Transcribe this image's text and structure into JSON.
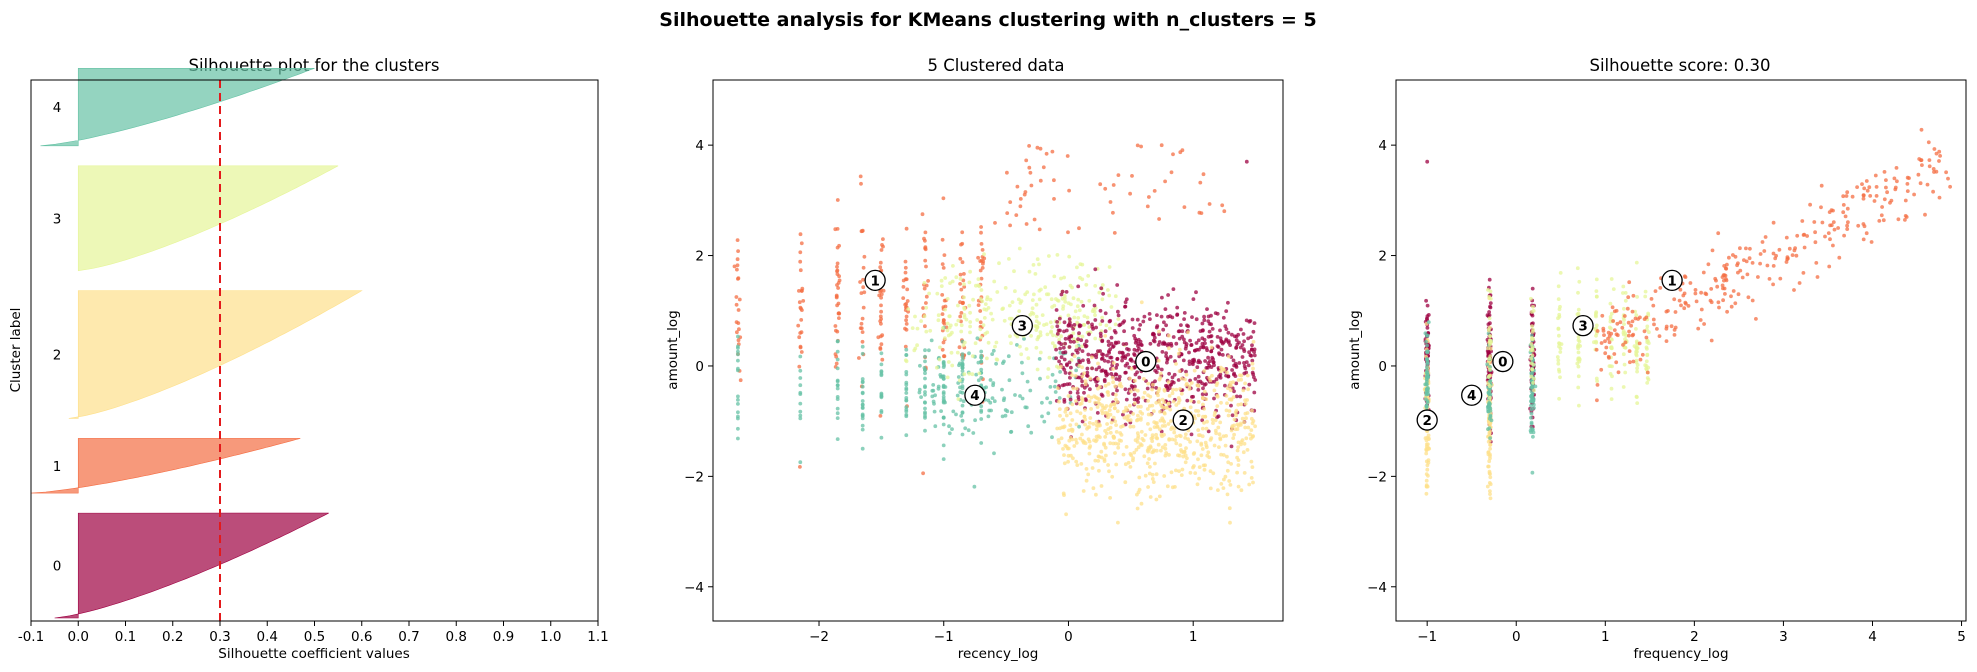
{
  "figure": {
    "suptitle": "Silhouette analysis for KMeans clustering with n_clusters = 5",
    "palette": [
      "#9e0142",
      "#f46d43",
      "#fee08b",
      "#e6f598",
      "#66c2a5"
    ]
  },
  "chart_data": [
    {
      "type": "area",
      "title": "Silhouette plot for the clusters",
      "xlabel": "Silhouette coefficient values",
      "ylabel": "Cluster label",
      "xlim": [
        -0.1,
        1.1
      ],
      "xticks": [
        "-0.1",
        "0.0",
        "0.1",
        "0.2",
        "0.3",
        "0.4",
        "0.5",
        "0.6",
        "0.7",
        "0.8",
        "0.9",
        "1.0",
        "1.1"
      ],
      "yticks": "none",
      "average_silhouette_line": 0.3,
      "clusters": [
        {
          "label": "0",
          "color": "#9e0142",
          "max": 0.53,
          "min": -0.05,
          "share": 0.23
        },
        {
          "label": "1",
          "color": "#f46d43",
          "max": 0.47,
          "min": -0.1,
          "share": 0.12
        },
        {
          "label": "2",
          "color": "#fee08b",
          "max": 0.6,
          "min": -0.02,
          "share": 0.28
        },
        {
          "label": "3",
          "color": "#e6f598",
          "max": 0.55,
          "min": 0.0,
          "share": 0.23
        },
        {
          "label": "4",
          "color": "#66c2a5",
          "max": 0.5,
          "min": -0.08,
          "share": 0.17
        }
      ]
    },
    {
      "type": "scatter",
      "title": "5 Clustered data",
      "xlabel": "recency_log",
      "ylabel": "amount_log",
      "xlim": [
        -2.85,
        1.72
      ],
      "ylim": [
        -4.62,
        5.18
      ],
      "xticks": [
        "−2",
        "−1",
        "0",
        "1"
      ],
      "yticks": [
        "−4",
        "−2",
        "0",
        "2",
        "4"
      ],
      "centers": [
        {
          "label": "0",
          "x": 0.62,
          "y": 0.08
        },
        {
          "label": "1",
          "x": -1.55,
          "y": 1.55
        },
        {
          "label": "2",
          "x": 0.92,
          "y": -0.98
        },
        {
          "label": "3",
          "x": -0.37,
          "y": 0.73
        },
        {
          "label": "4",
          "x": -0.75,
          "y": -0.53
        }
      ]
    },
    {
      "type": "scatter",
      "title": "Silhouette score: 0.30",
      "xlabel": "frequency_log",
      "ylabel": "amount_log",
      "xlim": [
        -1.35,
        5.05
      ],
      "ylim": [
        -4.62,
        5.18
      ],
      "xticks": [
        "−1",
        "0",
        "1",
        "2",
        "3",
        "4",
        "5"
      ],
      "yticks": [
        "−4",
        "−2",
        "0",
        "2",
        "4"
      ],
      "centers": [
        {
          "label": "0",
          "x": -0.15,
          "y": 0.08
        },
        {
          "label": "1",
          "x": 1.75,
          "y": 1.55
        },
        {
          "label": "2",
          "x": -1.0,
          "y": -0.98
        },
        {
          "label": "3",
          "x": 0.75,
          "y": 0.73
        },
        {
          "label": "4",
          "x": -0.5,
          "y": -0.53
        }
      ]
    }
  ]
}
